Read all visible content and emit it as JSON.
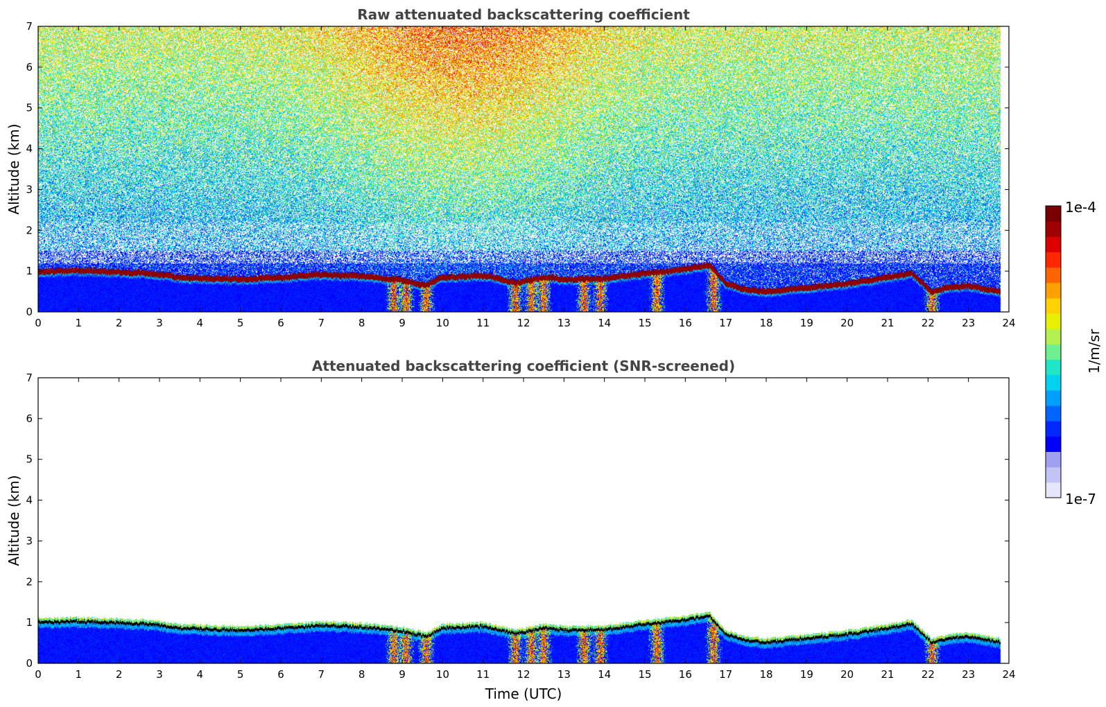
{
  "colors": {
    "colormap": [
      "#e6e6fa",
      "#c3c3f5",
      "#a0a0f0",
      "#0000ff",
      "#0028ff",
      "#0064ff",
      "#00a0ff",
      "#00d2f0",
      "#20e6c8",
      "#6ef090",
      "#b4f050",
      "#e6f000",
      "#ffd200",
      "#ffa000",
      "#ff6400",
      "#ff2800",
      "#dc0000",
      "#a00000",
      "#780000"
    ],
    "layer_edge": "#000000"
  },
  "chart_data": [
    {
      "type": "heatmap",
      "title": "Raw attenuated backscattering coefficient",
      "xlabel": "",
      "ylabel": "Altitude (km)",
      "xlim": [
        0,
        24
      ],
      "ylim": [
        0,
        7
      ],
      "x_ticks": [
        "0",
        "1",
        "2",
        "3",
        "4",
        "5",
        "6",
        "7",
        "8",
        "9",
        "10",
        "11",
        "12",
        "13",
        "14",
        "15",
        "16",
        "17",
        "18",
        "19",
        "20",
        "21",
        "22",
        "23",
        "24"
      ],
      "y_ticks": [
        "0",
        "1",
        "2",
        "3",
        "4",
        "5",
        "6",
        "7"
      ],
      "layer_top_km": {
        "time": [
          0,
          1,
          2,
          2.8,
          3.5,
          5,
          6,
          7,
          8,
          9,
          9.6,
          10,
          11,
          11.8,
          12.5,
          13,
          14,
          15,
          16,
          16.6,
          17,
          17.5,
          18,
          19,
          20,
          21,
          21.6,
          22.1,
          22.5,
          23,
          23.8
        ],
        "altitude": [
          1.0,
          1.02,
          0.98,
          0.95,
          0.85,
          0.8,
          0.85,
          0.92,
          0.88,
          0.78,
          0.65,
          0.85,
          0.9,
          0.72,
          0.85,
          0.8,
          0.82,
          0.95,
          1.05,
          1.15,
          0.7,
          0.55,
          0.5,
          0.6,
          0.7,
          0.85,
          0.95,
          0.5,
          0.6,
          0.65,
          0.5
        ]
      },
      "precipitation_shafts_utc": [
        8.8,
        9.1,
        9.6,
        11.8,
        12.2,
        12.5,
        13.5,
        13.9,
        15.3,
        16.7,
        22.1
      ],
      "background_noise": "high aloft"
    },
    {
      "type": "heatmap",
      "title": "Attenuated backscattering coefficient (SNR-screened)",
      "xlabel": "Time (UTC)",
      "ylabel": "Altitude (km)",
      "xlim": [
        0,
        24
      ],
      "ylim": [
        0,
        7
      ],
      "x_ticks": [
        "0",
        "1",
        "2",
        "3",
        "4",
        "5",
        "6",
        "7",
        "8",
        "9",
        "10",
        "11",
        "12",
        "13",
        "14",
        "15",
        "16",
        "17",
        "18",
        "19",
        "20",
        "21",
        "22",
        "23",
        "24"
      ],
      "y_ticks": [
        "0",
        "1",
        "2",
        "3",
        "4",
        "5",
        "6",
        "7"
      ],
      "layer_top_km": {
        "time": [
          0,
          1,
          2,
          2.8,
          3.5,
          5,
          6,
          7,
          8,
          9,
          9.6,
          10,
          11,
          11.8,
          12.5,
          13,
          14,
          15,
          16,
          16.6,
          17,
          17.5,
          18,
          19,
          20,
          21,
          21.6,
          22.1,
          22.5,
          23,
          23.8
        ],
        "altitude": [
          1.0,
          1.02,
          0.98,
          0.95,
          0.85,
          0.8,
          0.85,
          0.92,
          0.88,
          0.78,
          0.65,
          0.85,
          0.9,
          0.72,
          0.85,
          0.8,
          0.82,
          0.95,
          1.05,
          1.15,
          0.7,
          0.55,
          0.5,
          0.6,
          0.7,
          0.85,
          0.95,
          0.5,
          0.6,
          0.65,
          0.5
        ]
      },
      "precipitation_shafts_utc": [
        8.8,
        9.1,
        9.6,
        11.8,
        12.2,
        12.5,
        13.5,
        13.9,
        15.3,
        16.7,
        22.1
      ],
      "background_noise": "screened"
    }
  ],
  "colorbar": {
    "max_label": "1e-4",
    "min_label": "1e-7",
    "unit_label": "1/m/sr",
    "range": [
      1e-07,
      0.0001
    ],
    "scale": "log"
  }
}
